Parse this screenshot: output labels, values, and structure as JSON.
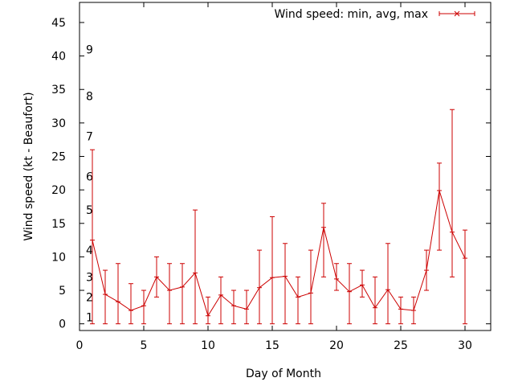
{
  "chart_data": {
    "type": "line",
    "xlabel": "Day of Month",
    "ylabel": "Wind speed (kt - Beaufort)",
    "xlim": [
      0,
      32
    ],
    "ylim": [
      -1,
      48
    ],
    "x_ticks": [
      0,
      5,
      10,
      15,
      20,
      25,
      30
    ],
    "y_ticks": [
      0,
      5,
      10,
      15,
      20,
      25,
      30,
      35,
      40,
      45
    ],
    "grid": false,
    "legend": {
      "position": "top-right"
    },
    "beaufort_labels": [
      {
        "label": "1",
        "y": 1
      },
      {
        "label": "2",
        "y": 4
      },
      {
        "label": "3",
        "y": 7
      },
      {
        "label": "4",
        "y": 11
      },
      {
        "label": "5",
        "y": 17
      },
      {
        "label": "6",
        "y": 22
      },
      {
        "label": "7",
        "y": 28
      },
      {
        "label": "8",
        "y": 34
      },
      {
        "label": "9",
        "y": 41
      }
    ],
    "series": [
      {
        "name": "Wind speed: min, avg, max",
        "color": "#cc0000",
        "x": [
          1,
          2,
          3,
          4,
          5,
          6,
          7,
          8,
          9,
          10,
          11,
          12,
          13,
          14,
          15,
          16,
          17,
          18,
          19,
          20,
          21,
          22,
          23,
          24,
          25,
          26,
          27,
          28,
          29,
          30
        ],
        "avg": [
          12.5,
          4.4,
          3.3,
          2.0,
          2.7,
          7.0,
          5.0,
          5.5,
          7.6,
          1.2,
          4.3,
          2.7,
          2.2,
          5.4,
          6.9,
          7.1,
          4.0,
          4.6,
          14.4,
          6.7,
          4.8,
          5.8,
          2.4,
          5.1,
          2.2,
          2.0,
          8.0,
          19.9,
          13.7,
          9.8
        ],
        "min": [
          0,
          0,
          0,
          0,
          0,
          4,
          0,
          0,
          0,
          0,
          0,
          0,
          0,
          0,
          0,
          0,
          0,
          0,
          7,
          5,
          0,
          4,
          0,
          0,
          0,
          0,
          5,
          11,
          7,
          0
        ],
        "max": [
          26,
          8,
          9,
          6,
          5,
          10,
          9,
          9,
          17,
          4,
          7,
          5,
          5,
          11,
          16,
          12,
          7,
          11,
          18,
          9,
          9,
          8,
          7,
          12,
          4,
          4,
          11,
          24,
          32,
          14
        ]
      }
    ]
  }
}
